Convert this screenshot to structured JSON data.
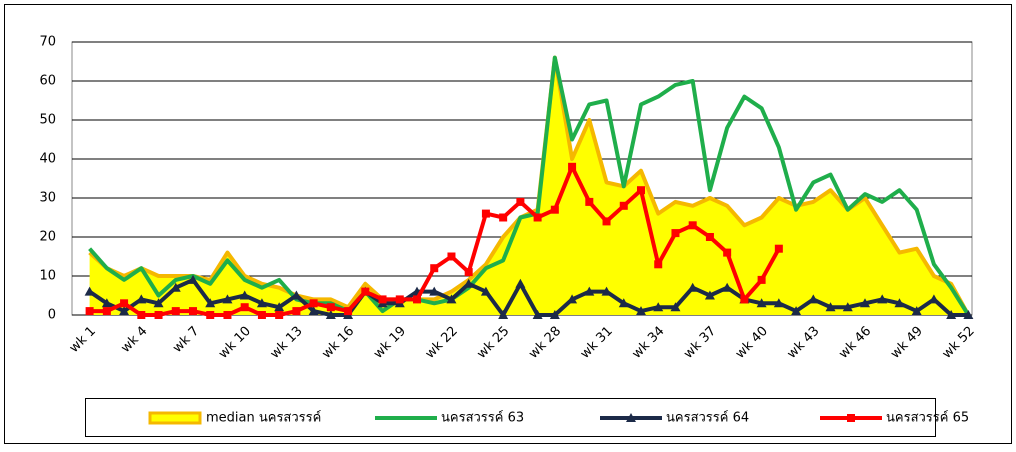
{
  "chart_data": {
    "type": "line",
    "categories": [
      "wk 1",
      null,
      null,
      "wk 4",
      null,
      null,
      "wk 7",
      null,
      null,
      "wk 10",
      null,
      null,
      "wk 13",
      null,
      null,
      "wk 16",
      null,
      null,
      "wk 19",
      null,
      null,
      "wk 22",
      null,
      null,
      "wk 25",
      null,
      null,
      "wk 28",
      null,
      null,
      "wk 31",
      null,
      null,
      "wk 34",
      null,
      null,
      "wk 37",
      null,
      null,
      "wk 40",
      null,
      null,
      "wk 43",
      null,
      null,
      "wk 46",
      null,
      null,
      "wk 49",
      null,
      null,
      "wk 52"
    ],
    "series": [
      {
        "name": "median นครสวรรค์",
        "color": "#f5b800",
        "fill": "#ffff00",
        "marker": "area",
        "values": [
          16,
          12,
          10,
          12,
          10,
          10,
          10,
          9,
          16,
          10,
          8,
          7,
          5,
          4,
          4,
          2,
          8,
          4,
          4,
          4,
          4,
          6,
          9,
          13,
          20,
          25,
          27,
          66,
          40,
          50,
          34,
          33,
          37,
          26,
          29,
          28,
          30,
          28,
          23,
          25,
          30,
          28,
          29,
          32,
          27,
          30,
          23,
          16,
          17,
          10,
          8,
          0
        ]
      },
      {
        "name": "นครสวรรค์ 63",
        "color": "#1fae4b",
        "marker": "none",
        "values": [
          17,
          12,
          9,
          12,
          5,
          9,
          10,
          8,
          14,
          9,
          7,
          9,
          4,
          3,
          3,
          1,
          6,
          1,
          4,
          4,
          3,
          4,
          7,
          12,
          14,
          25,
          26,
          66,
          45,
          54,
          55,
          33,
          54,
          56,
          59,
          60,
          32,
          48,
          56,
          53,
          43,
          27,
          34,
          36,
          27,
          31,
          29,
          32,
          27,
          13,
          7,
          0
        ]
      },
      {
        "name": "นครสวรรค์ 64",
        "color": "#1c2a48",
        "marker": "triangle",
        "values": [
          6,
          3,
          1,
          4,
          3,
          7,
          9,
          3,
          4,
          5,
          3,
          2,
          5,
          1,
          0,
          0,
          6,
          3,
          3,
          6,
          6,
          4,
          8,
          6,
          0,
          8,
          0,
          0,
          4,
          6,
          6,
          3,
          1,
          2,
          2,
          7,
          5,
          7,
          4,
          3,
          3,
          1,
          4,
          2,
          2,
          3,
          4,
          3,
          1,
          4,
          0,
          0
        ]
      },
      {
        "name": "นครสวรรค์ 65",
        "color": "#ff0000",
        "marker": "square",
        "values": [
          1,
          1,
          3,
          0,
          0,
          1,
          1,
          0,
          0,
          2,
          0,
          0,
          1,
          3,
          2,
          1,
          6,
          4,
          4,
          4,
          12,
          15,
          11,
          26,
          25,
          29,
          25,
          27,
          38,
          29,
          24,
          28,
          32,
          13,
          21,
          23,
          20,
          16,
          4,
          9,
          17,
          null,
          null,
          null,
          null,
          null,
          null,
          null,
          null,
          null,
          null,
          null
        ]
      }
    ],
    "ylim": [
      0,
      70
    ],
    "yticks": [
      0,
      10,
      20,
      30,
      40,
      50,
      60,
      70
    ],
    "grid": true,
    "legend": "bottom"
  }
}
